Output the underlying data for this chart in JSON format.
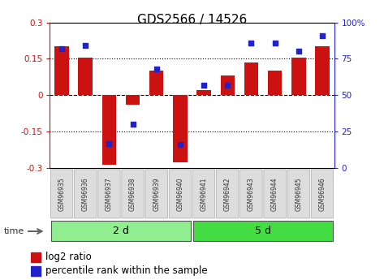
{
  "title": "GDS2566 / 14526",
  "samples": [
    "GSM96935",
    "GSM96936",
    "GSM96937",
    "GSM96938",
    "GSM96939",
    "GSM96940",
    "GSM96941",
    "GSM96942",
    "GSM96943",
    "GSM96944",
    "GSM96945",
    "GSM96946"
  ],
  "log2_ratio": [
    0.2,
    0.155,
    -0.285,
    -0.04,
    0.1,
    -0.275,
    0.02,
    0.08,
    0.135,
    0.1,
    0.155,
    0.2
  ],
  "percentile_rank": [
    82,
    84,
    17,
    30,
    68,
    16,
    57,
    57,
    86,
    86,
    80,
    91
  ],
  "groups": [
    {
      "label": "2 d",
      "start": 0,
      "end": 6,
      "color": "#90EE90"
    },
    {
      "label": "5 d",
      "start": 6,
      "end": 12,
      "color": "#44DD44"
    }
  ],
  "bar_color": "#CC1111",
  "dot_color": "#2222CC",
  "ylim": [
    -0.3,
    0.3
  ],
  "y2lim": [
    0,
    100
  ],
  "yticks": [
    -0.3,
    -0.15,
    0,
    0.15,
    0.3
  ],
  "ytick_labels": [
    "-0.3",
    "-0.15",
    "0",
    "0.15",
    "0.3"
  ],
  "y2ticks": [
    0,
    25,
    50,
    75,
    100
  ],
  "y2tick_labels": [
    "0",
    "25",
    "50",
    "75",
    "100%"
  ],
  "hlines": [
    -0.15,
    0,
    0.15
  ],
  "bar_width": 0.6,
  "bg_color": "#ffffff",
  "title_fontsize": 11,
  "tick_fontsize": 7.5,
  "label_fontsize": 8.5,
  "sample_fontsize": 5.5,
  "group_fontsize": 9
}
